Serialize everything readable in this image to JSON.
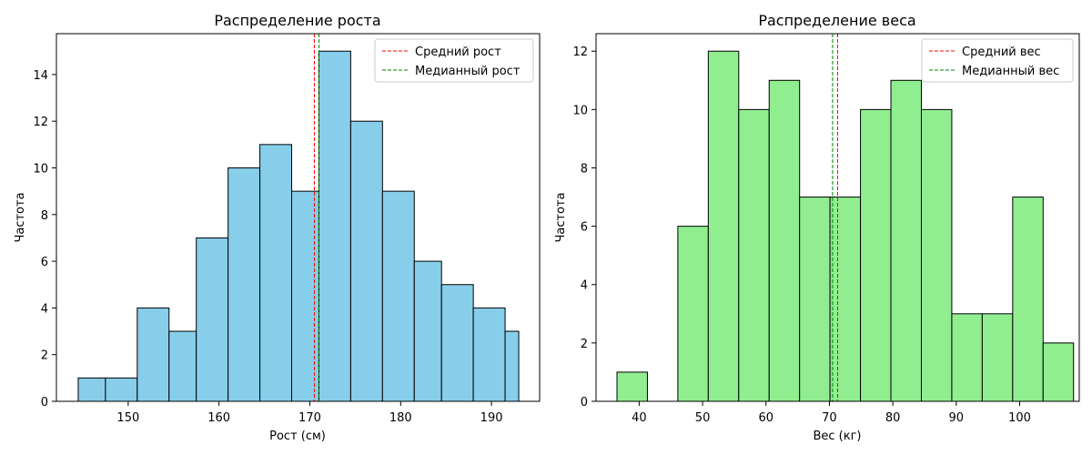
{
  "chart_data": [
    {
      "type": "bar",
      "title": "Распределение роста",
      "xlabel": "Рост (см)",
      "ylabel": "Частота",
      "xlim": [
        142.1,
        195.3
      ],
      "ylim": [
        0,
        15.75
      ],
      "xticks": [
        "150",
        "160",
        "170",
        "180",
        "190"
      ],
      "yticks": [
        "0",
        "2",
        "4",
        "6",
        "8",
        "10",
        "12",
        "14"
      ],
      "bin_edges": [
        144.5,
        147.5,
        151.0,
        154.5,
        157.5,
        161.0,
        164.5,
        168.0,
        171.0,
        174.5,
        178.0,
        181.5,
        184.5,
        188.0,
        191.5,
        193.0
      ],
      "values": [
        1,
        1,
        4,
        3,
        7,
        10,
        11,
        9,
        15,
        12,
        9,
        6,
        5,
        4,
        3
      ],
      "bar_color": "#87CEEB",
      "mean_line": {
        "value": 170.5,
        "color": "#ff0000",
        "label": "Средний рост"
      },
      "median_line": {
        "value": 171.0,
        "color": "#008000",
        "label": "Медианный рост"
      },
      "legend": "top-right",
      "grid": false
    },
    {
      "type": "bar",
      "title": "Распределение веса",
      "xlabel": "Вес (кг)",
      "ylabel": "Частота",
      "xlim": [
        33.2,
        109.4
      ],
      "ylim": [
        0,
        12.6
      ],
      "xticks": [
        "40",
        "50",
        "60",
        "70",
        "80",
        "90",
        "100"
      ],
      "yticks": [
        "0",
        "2",
        "4",
        "6",
        "8",
        "10",
        "12"
      ],
      "bin_edges": [
        36.5,
        41.3,
        46.1,
        50.9,
        55.7,
        60.5,
        65.3,
        70.1,
        74.9,
        79.7,
        84.5,
        89.3,
        94.1,
        98.9,
        103.7,
        108.5
      ],
      "values": [
        1,
        0,
        6,
        12,
        10,
        11,
        7,
        7,
        10,
        11,
        10,
        3,
        3,
        7,
        2
      ],
      "bar_color": "#90EE90",
      "mean_line": {
        "value": 71.3,
        "color": "#ff0000",
        "label": "Средний вес"
      },
      "median_line": {
        "value": 70.5,
        "color": "#008000",
        "label": "Медианный вес"
      },
      "legend": "top-right",
      "grid": false
    }
  ]
}
